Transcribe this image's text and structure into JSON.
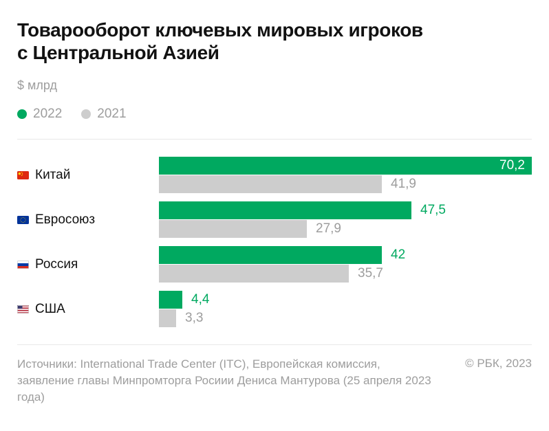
{
  "header": {
    "title_line1": "Товарооборот ключевых мировых игроков",
    "title_line2": "с Центральной Азией",
    "units": "$ млрд"
  },
  "legend": {
    "items": [
      {
        "label": "2022",
        "color": "#00A960"
      },
      {
        "label": "2021",
        "color": "#CDCDCD"
      }
    ]
  },
  "chart_data": {
    "type": "bar",
    "orientation": "horizontal",
    "title": "Товарооборот ключевых мировых игроков с Центральной Азией",
    "unit": "$ млрд",
    "xlim": [
      0,
      70.2
    ],
    "grid": false,
    "legend_position": "top-left",
    "categories": [
      "Китай",
      "Евросоюз",
      "Россия",
      "США"
    ],
    "flags": [
      "cn",
      "eu",
      "ru",
      "us"
    ],
    "series": [
      {
        "name": "2022",
        "color": "#00A960",
        "label_color": "#00A960",
        "values": [
          70.2,
          47.5,
          42,
          4.4
        ],
        "labels": [
          "70,2",
          "47,5",
          "42",
          "4,4"
        ]
      },
      {
        "name": "2021",
        "color": "#CDCDCD",
        "label_color": "#9D9D9D",
        "values": [
          41.9,
          27.9,
          35.7,
          3.3
        ],
        "labels": [
          "41,9",
          "27,9",
          "35,7",
          "3,3"
        ]
      }
    ]
  },
  "footer": {
    "sources": "Источники: International Trade Center (ITC), Европейская комиссия, заявление главы Минпромторга Росиии Дениса Мантурова (25 апреля 2023 года)",
    "copyright": "© РБК, 2023"
  }
}
